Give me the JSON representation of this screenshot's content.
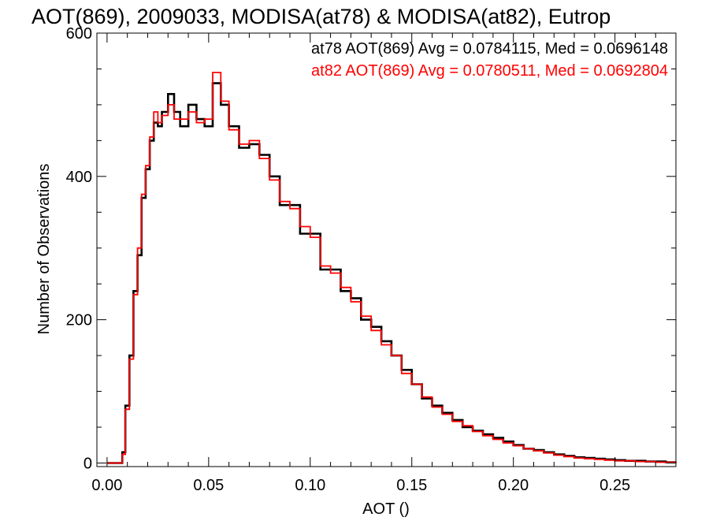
{
  "chart_data": {
    "type": "line",
    "title": "AOT(869), 2009033, MODISA(at78) & MODISA(at82), Eutrop",
    "xlabel": "AOT ()",
    "ylabel": "Number of Observations",
    "xlim": [
      -0.005,
      0.28
    ],
    "ylim": [
      -5,
      600
    ],
    "xticks": [
      0.0,
      0.05,
      0.1,
      0.15,
      0.2,
      0.25
    ],
    "xtick_labels": [
      "0.00",
      "0.05",
      "0.10",
      "0.15",
      "0.20",
      "0.25"
    ],
    "yticks": [
      0,
      200,
      400,
      600
    ],
    "ytick_labels": [
      "0",
      "200",
      "400",
      "600"
    ],
    "grid": false,
    "step": "histogram",
    "annotations": [
      {
        "text": "at78 AOT(869) Avg = 0.0784115, Med = 0.0696148",
        "color": "#000000"
      },
      {
        "text": "at82 AOT(869) Avg = 0.0780511, Med = 0.0692804",
        "color": "#ff0000"
      }
    ],
    "series": [
      {
        "color": "#000000",
        "x": [
          0.0,
          0.005,
          0.0075,
          0.009,
          0.011,
          0.013,
          0.015,
          0.017,
          0.019,
          0.021,
          0.023,
          0.025,
          0.027,
          0.03,
          0.033,
          0.036,
          0.04,
          0.044,
          0.048,
          0.052,
          0.056,
          0.06,
          0.065,
          0.07,
          0.075,
          0.08,
          0.085,
          0.09,
          0.095,
          0.1,
          0.105,
          0.11,
          0.115,
          0.12,
          0.125,
          0.13,
          0.135,
          0.14,
          0.145,
          0.15,
          0.155,
          0.16,
          0.165,
          0.17,
          0.175,
          0.18,
          0.185,
          0.19,
          0.195,
          0.2,
          0.205,
          0.21,
          0.215,
          0.22,
          0.225,
          0.23,
          0.235,
          0.24,
          0.245,
          0.25,
          0.255,
          0.26,
          0.265,
          0.27,
          0.275,
          0.28
        ],
        "y": [
          0,
          0,
          15,
          80,
          150,
          240,
          290,
          370,
          410,
          450,
          475,
          470,
          490,
          515,
          490,
          470,
          500,
          480,
          470,
          530,
          500,
          470,
          440,
          445,
          430,
          400,
          360,
          360,
          320,
          320,
          270,
          270,
          240,
          230,
          200,
          190,
          170,
          150,
          130,
          110,
          90,
          80,
          70,
          60,
          50,
          45,
          40,
          35,
          30,
          25,
          20,
          18,
          15,
          12,
          10,
          8,
          7,
          6,
          5,
          4,
          3,
          3,
          2,
          2,
          1,
          1
        ]
      },
      {
        "color": "#ff0000",
        "x": [
          0.0,
          0.005,
          0.0075,
          0.009,
          0.011,
          0.013,
          0.015,
          0.017,
          0.019,
          0.021,
          0.023,
          0.025,
          0.027,
          0.03,
          0.033,
          0.036,
          0.04,
          0.044,
          0.048,
          0.052,
          0.056,
          0.06,
          0.065,
          0.07,
          0.075,
          0.08,
          0.085,
          0.09,
          0.095,
          0.1,
          0.105,
          0.11,
          0.115,
          0.12,
          0.125,
          0.13,
          0.135,
          0.14,
          0.145,
          0.15,
          0.155,
          0.16,
          0.165,
          0.17,
          0.175,
          0.18,
          0.185,
          0.19,
          0.195,
          0.2,
          0.205,
          0.21,
          0.215,
          0.22,
          0.225,
          0.23,
          0.235,
          0.24,
          0.245,
          0.25,
          0.255,
          0.26,
          0.265,
          0.27,
          0.275,
          0.28
        ],
        "y": [
          0,
          0,
          12,
          75,
          145,
          235,
          300,
          375,
          415,
          455,
          490,
          475,
          485,
          500,
          480,
          480,
          490,
          475,
          480,
          545,
          505,
          465,
          445,
          450,
          425,
          395,
          365,
          355,
          330,
          315,
          275,
          265,
          245,
          225,
          205,
          185,
          165,
          150,
          125,
          110,
          92,
          78,
          68,
          58,
          52,
          44,
          38,
          33,
          28,
          24,
          20,
          17,
          14,
          11,
          9,
          7,
          6,
          5,
          4,
          3,
          3,
          2,
          2,
          1,
          1,
          0
        ]
      }
    ]
  }
}
